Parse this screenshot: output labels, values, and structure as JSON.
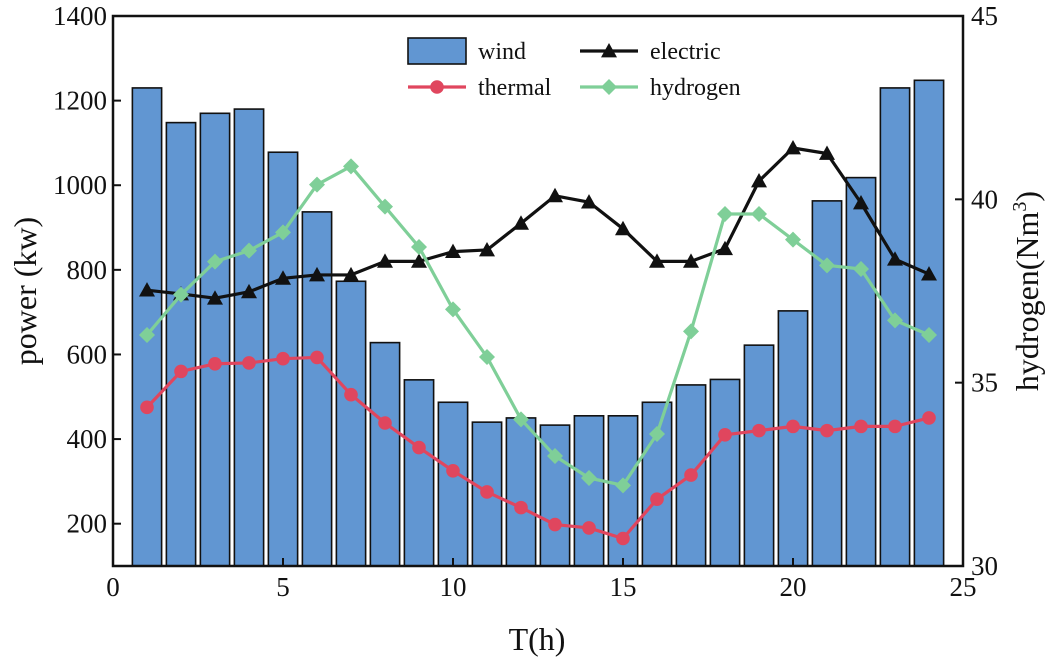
{
  "chart_data": {
    "type": "bar+line",
    "x": [
      1,
      2,
      3,
      4,
      5,
      6,
      7,
      8,
      9,
      10,
      11,
      12,
      13,
      14,
      15,
      16,
      17,
      18,
      19,
      20,
      21,
      22,
      23,
      24
    ],
    "xlabel": "T(h)",
    "xlim": [
      0,
      25
    ],
    "xticks": [
      "0",
      "5",
      "10",
      "15",
      "20",
      "25"
    ],
    "ylabel_left": "power (kw)",
    "ylim_left": [
      100,
      1400
    ],
    "yticks_left": [
      "200",
      "400",
      "600",
      "800",
      "1000",
      "1200",
      "1400"
    ],
    "ylabel_right_base": "hydrogen(Nm",
    "ylabel_right_sup": "3",
    "ylabel_right_close": ")",
    "ylim_right": [
      30,
      45
    ],
    "yticks_right": [
      "30",
      "35",
      "40",
      "45"
    ],
    "legend_position": "top-center",
    "grid": false,
    "series": [
      {
        "name": "wind",
        "type": "bar",
        "axis": "left",
        "color": "#6196d2",
        "values": [
          1230,
          1148,
          1170,
          1180,
          1078,
          937,
          773,
          628,
          540,
          487,
          440,
          450,
          433,
          455,
          455,
          487,
          528,
          541,
          622,
          703,
          963,
          1018,
          1230,
          1248
        ]
      },
      {
        "name": "electric",
        "type": "line",
        "axis": "left",
        "marker": "triangle",
        "color": "#111111",
        "values": [
          752,
          743,
          733,
          748,
          780,
          788,
          788,
          820,
          820,
          843,
          847,
          910,
          975,
          960,
          897,
          820,
          820,
          850,
          1010,
          1088,
          1075,
          958,
          825,
          790
        ]
      },
      {
        "name": "thermal",
        "type": "line",
        "axis": "left",
        "marker": "circle",
        "color": "#e0465e",
        "values": [
          475,
          560,
          578,
          580,
          590,
          593,
          505,
          438,
          380,
          325,
          275,
          238,
          198,
          190,
          165,
          258,
          315,
          410,
          420,
          430,
          420,
          430,
          430,
          450
        ]
      },
      {
        "name": "hydrogen",
        "type": "line",
        "axis": "right",
        "marker": "diamond",
        "color": "#7fcf98",
        "values": [
          36.3,
          37.4,
          38.3,
          38.6,
          39.1,
          40.4,
          40.9,
          39.8,
          38.7,
          37.0,
          35.7,
          34.0,
          33.0,
          32.4,
          32.2,
          33.6,
          36.4,
          39.6,
          39.6,
          38.9,
          38.2,
          38.1,
          36.7,
          36.3
        ]
      }
    ]
  }
}
